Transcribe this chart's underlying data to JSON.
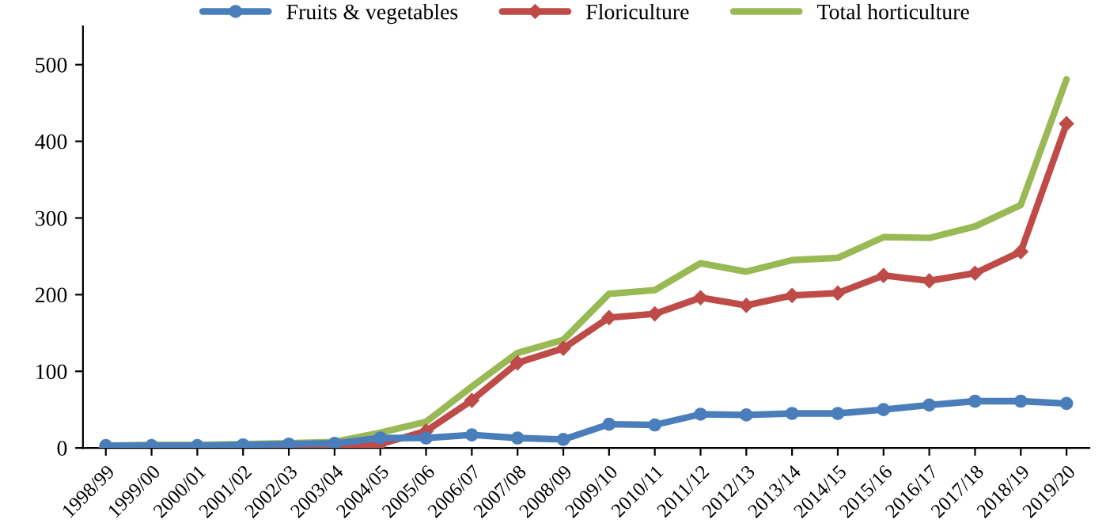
{
  "chart_data": {
    "type": "line",
    "categories": [
      "1998/99",
      "1999/00",
      "2000/01",
      "2001/02",
      "2002/03",
      "2003/04",
      "2004/05",
      "2005/06",
      "2006/07",
      "2007/08",
      "2008/09",
      "2009/10",
      "2010/11",
      "2011/12",
      "2012/13",
      "2013/14",
      "2014/15",
      "2015/16",
      "2016/17",
      "2017/18",
      "2018/19",
      "2019/20"
    ],
    "series": [
      {
        "name": "Fruits & vegetables",
        "color": "#4a7ebb",
        "marker": "circle",
        "values": [
          3,
          3,
          3,
          4,
          5,
          6,
          13,
          13,
          17,
          13,
          11,
          31,
          30,
          44,
          43,
          45,
          45,
          50,
          56,
          61,
          61,
          58
        ]
      },
      {
        "name": "Floriculture",
        "color": "#be4b48",
        "marker": "diamond",
        "values": [
          0,
          0,
          0,
          0,
          0,
          0,
          5,
          22,
          62,
          111,
          130,
          170,
          175,
          196,
          186,
          199,
          202,
          225,
          218,
          228,
          256,
          423
        ]
      },
      {
        "name": "Total horticulture",
        "color": "#98b954",
        "marker": "none",
        "values": [
          3,
          4,
          4,
          5,
          6,
          8,
          20,
          34,
          80,
          124,
          141,
          201,
          206,
          241,
          230,
          245,
          248,
          275,
          274,
          289,
          317,
          481
        ]
      }
    ],
    "ylim": [
      0,
      550
    ],
    "yticks": [
      0,
      100,
      200,
      300,
      400,
      500
    ],
    "grid": false,
    "legend": "top"
  }
}
